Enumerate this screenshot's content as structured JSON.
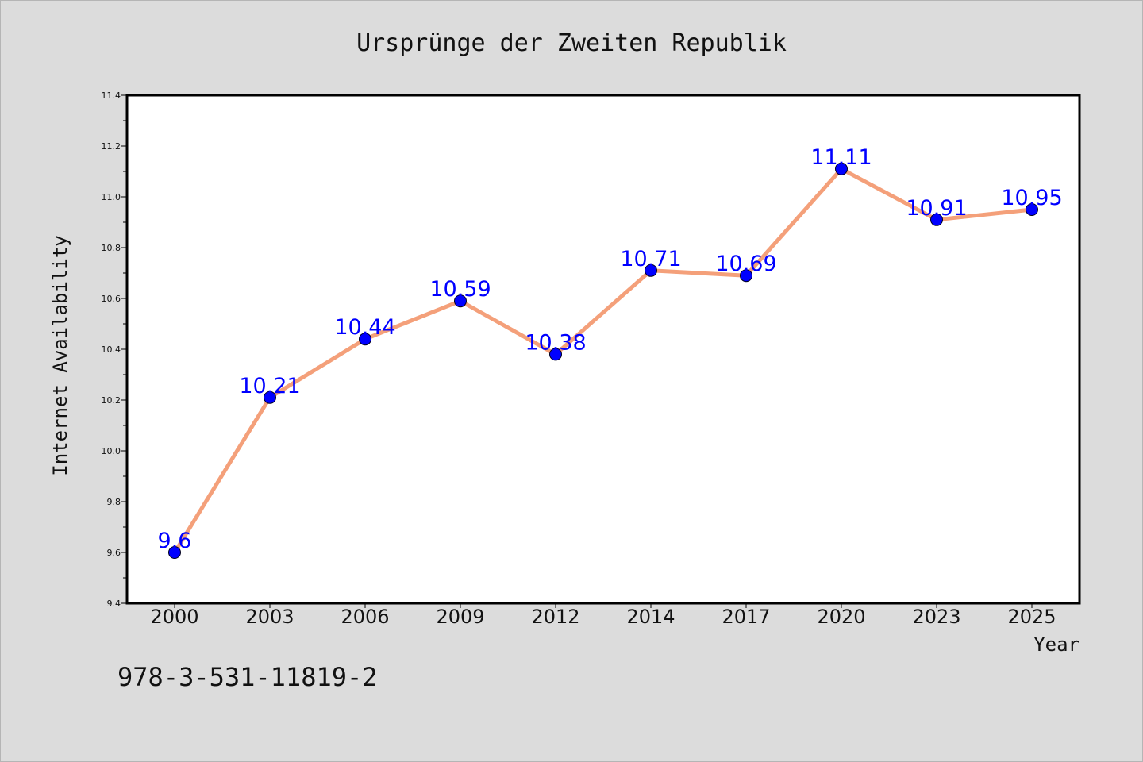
{
  "chart_data": {
    "type": "line",
    "title": "Ursprünge der Zweiten Republik",
    "xlabel": "Year",
    "ylabel": "Internet Availability",
    "categories": [
      "2000",
      "2003",
      "2006",
      "2009",
      "2012",
      "2014",
      "2017",
      "2020",
      "2023",
      "2025"
    ],
    "series": [
      {
        "values": [
          9.6,
          10.21,
          10.44,
          10.59,
          10.38,
          10.71,
          10.69,
          11.11,
          10.91,
          10.95
        ],
        "data_labels": [
          "9.6",
          "10.21",
          "10.44",
          "10.59",
          "10.38",
          "10.71",
          "10.69",
          "11.11",
          "10.91",
          "10.95"
        ],
        "line_color": "#f4a07a",
        "marker_color": "#0000ff"
      }
    ],
    "ylim": [
      9.4,
      11.4
    ],
    "yticks": [
      "9.4",
      "9.6",
      "9.8",
      "10.0",
      "10.2",
      "10.4",
      "10.6",
      "10.8",
      "11.0",
      "11.2",
      "11.4"
    ],
    "grid": false,
    "legend": "none"
  },
  "footer": {
    "isbn": "978-3-531-11819-2"
  },
  "colors": {
    "background": "#dcdcdc",
    "plot_background": "#ffffff",
    "line": "#f4a07a",
    "marker": "#0000ff",
    "data_label": "#0000ff"
  }
}
